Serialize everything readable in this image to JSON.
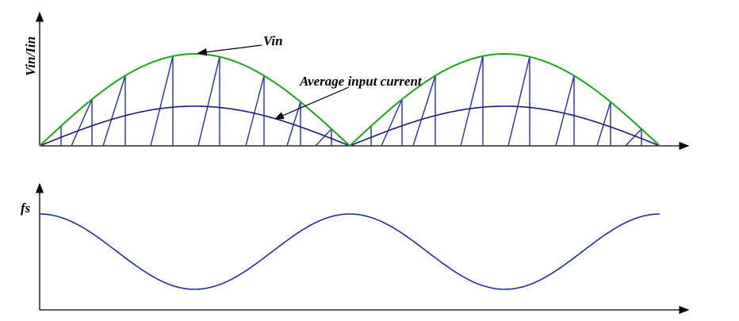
{
  "labels": {
    "y_top": "Vin/Iin",
    "vin": "Vin",
    "average": "Average input current",
    "y_bottom": "fs"
  }
}
